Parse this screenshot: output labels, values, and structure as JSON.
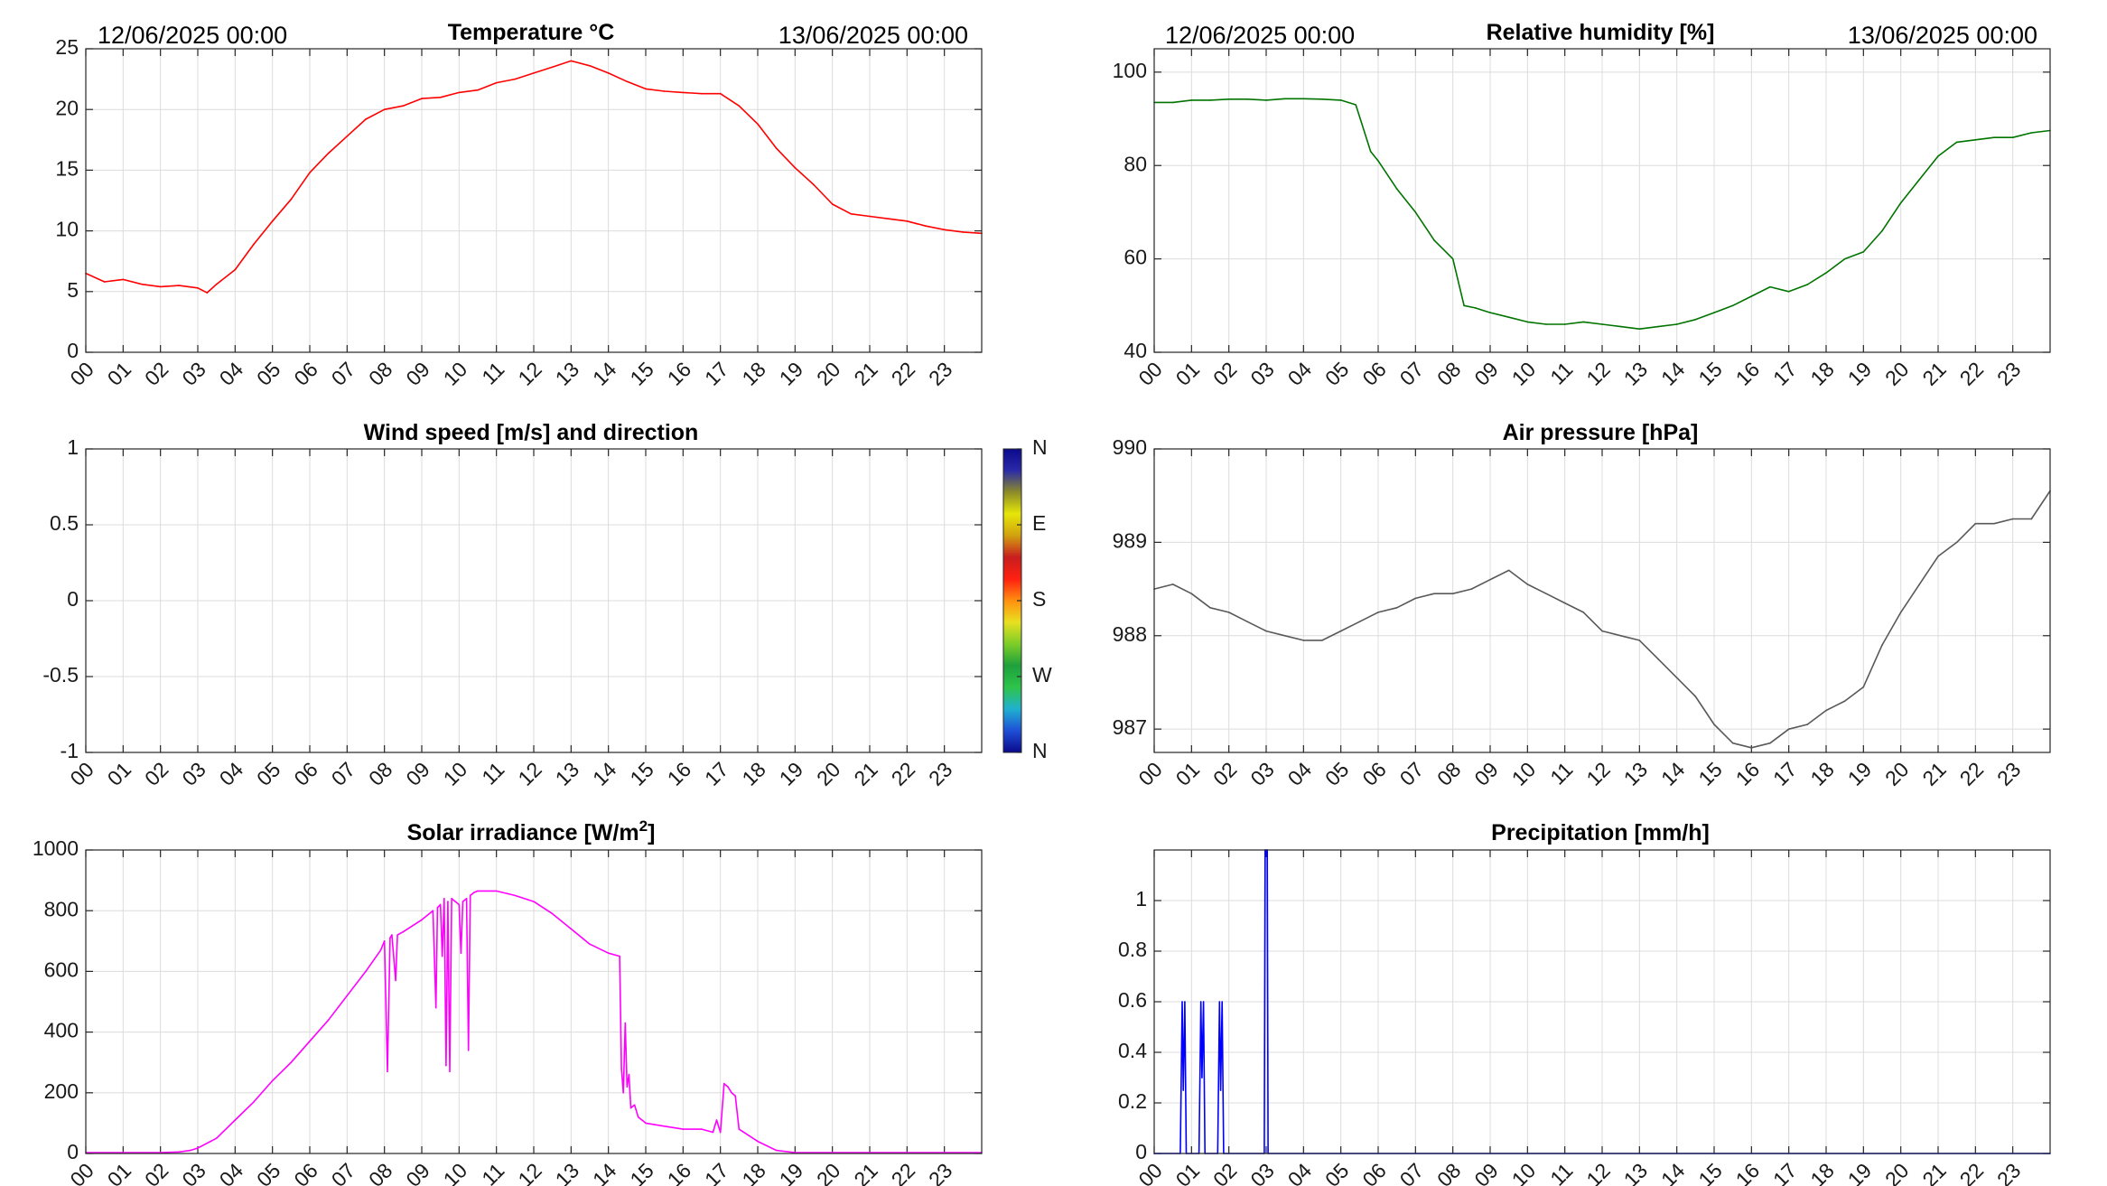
{
  "chart_data": [
    {
      "id": "temp",
      "type": "line",
      "title": "Temperature °C",
      "date_start": "12/06/2025 00:00",
      "date_end": "13/06/2025 00:00",
      "x_tick_labels": [
        "00",
        "01",
        "02",
        "03",
        "04",
        "05",
        "06",
        "07",
        "08",
        "09",
        "10",
        "11",
        "12",
        "13",
        "14",
        "15",
        "16",
        "17",
        "18",
        "19",
        "20",
        "21",
        "22",
        "23"
      ],
      "xlim": [
        0,
        24
      ],
      "ylim": [
        0,
        25
      ],
      "yticks": [
        0,
        5,
        10,
        15,
        20,
        25
      ],
      "ytick_labels": [
        "0",
        "5",
        "10",
        "15",
        "20",
        "25"
      ],
      "grid": true,
      "color": "#ff0000",
      "x": [
        0,
        0.5,
        1,
        1.5,
        2,
        2.5,
        3,
        3.25,
        3.5,
        4,
        4.5,
        5,
        5.5,
        6,
        6.5,
        7,
        7.5,
        8,
        8.5,
        9,
        9.5,
        10,
        10.5,
        11,
        11.5,
        12,
        12.5,
        13,
        13.5,
        14,
        14.5,
        15,
        15.5,
        16,
        16.5,
        17,
        17.5,
        18,
        18.5,
        19,
        19.5,
        20,
        20.5,
        21,
        21.5,
        22,
        22.5,
        23,
        23.5,
        24
      ],
      "y": [
        6.5,
        5.8,
        6.0,
        5.6,
        5.4,
        5.5,
        5.3,
        4.9,
        5.6,
        6.8,
        8.9,
        10.8,
        12.6,
        14.8,
        16.4,
        17.8,
        19.2,
        20.0,
        20.3,
        20.9,
        21.0,
        21.4,
        21.6,
        22.2,
        22.5,
        23.0,
        23.5,
        24.0,
        23.6,
        23.0,
        22.3,
        21.7,
        21.5,
        21.4,
        21.3,
        21.3,
        20.3,
        18.8,
        16.8,
        15.2,
        13.8,
        12.2,
        11.4,
        11.2,
        11.0,
        10.8,
        10.4,
        10.1,
        9.9,
        9.8
      ]
    },
    {
      "id": "rh",
      "type": "line",
      "title": "Relative humidity [%]",
      "date_start": "12/06/2025 00:00",
      "date_end": "13/06/2025 00:00",
      "x_tick_labels": [
        "00",
        "01",
        "02",
        "03",
        "04",
        "05",
        "06",
        "07",
        "08",
        "09",
        "10",
        "11",
        "12",
        "13",
        "14",
        "15",
        "16",
        "17",
        "18",
        "19",
        "20",
        "21",
        "22",
        "23"
      ],
      "xlim": [
        0,
        24
      ],
      "ylim": [
        40,
        105
      ],
      "yticks": [
        40,
        60,
        80,
        100
      ],
      "ytick_labels": [
        "40",
        "60",
        "80",
        "100"
      ],
      "grid": true,
      "color": "#007400",
      "x": [
        0,
        0.5,
        1,
        1.5,
        2,
        2.5,
        3,
        3.5,
        4,
        4.5,
        5,
        5.4,
        5.8,
        6,
        6.5,
        7,
        7.5,
        8,
        8.3,
        8.6,
        9,
        9.5,
        10,
        10.5,
        11,
        11.5,
        12,
        12.5,
        13,
        13.5,
        14,
        14.5,
        15,
        15.5,
        16,
        16.5,
        17,
        17.5,
        18,
        18.5,
        19,
        19.5,
        20,
        20.5,
        21,
        21.5,
        22,
        22.5,
        23,
        23.5,
        24
      ],
      "y": [
        93.5,
        93.5,
        94.0,
        94.0,
        94.2,
        94.2,
        94.0,
        94.3,
        94.3,
        94.2,
        94.0,
        93.0,
        83.0,
        81.0,
        75.0,
        70.0,
        64.0,
        60.0,
        50.0,
        49.5,
        48.5,
        47.5,
        46.5,
        46.0,
        46.0,
        46.5,
        46.0,
        45.5,
        45.0,
        45.5,
        46.0,
        47.0,
        48.5,
        50.0,
        52.0,
        54.0,
        53.0,
        54.5,
        57.0,
        60.0,
        61.5,
        66.0,
        72.0,
        77.0,
        82.0,
        85.0,
        85.5,
        86.0,
        86.0,
        87.0,
        87.5
      ]
    },
    {
      "id": "wind",
      "type": "scatter",
      "title": "Wind speed [m/s] and direction",
      "x_tick_labels": [
        "00",
        "01",
        "02",
        "03",
        "04",
        "05",
        "06",
        "07",
        "08",
        "09",
        "10",
        "11",
        "12",
        "13",
        "14",
        "15",
        "16",
        "17",
        "18",
        "19",
        "20",
        "21",
        "22",
        "23"
      ],
      "xlim": [
        0,
        24
      ],
      "ylim": [
        -1,
        1
      ],
      "yticks": [
        -1,
        -0.5,
        0,
        0.5,
        1
      ],
      "ytick_labels": [
        "-1",
        "-0.5",
        "0",
        "0.5",
        "1"
      ],
      "grid": true,
      "x": [],
      "y": [],
      "colorbar_labels": [
        "N",
        "W",
        "S",
        "E",
        "N"
      ],
      "colorbar_colors": [
        "#0a0a8c",
        "#1e4fd6",
        "#20b0d0",
        "#2ec44a",
        "#1ea03c",
        "#7ccd28",
        "#e8e020",
        "#ff9010",
        "#ff2010",
        "#c81e1e",
        "#d0a010",
        "#e6e60a",
        "#8c8c28",
        "#2a2aa8",
        "#0a0a8c"
      ]
    },
    {
      "id": "pressure",
      "type": "line",
      "title": "Air pressure [hPa]",
      "x_tick_labels": [
        "00",
        "01",
        "02",
        "03",
        "04",
        "05",
        "06",
        "07",
        "08",
        "09",
        "10",
        "11",
        "12",
        "13",
        "14",
        "15",
        "16",
        "17",
        "18",
        "19",
        "20",
        "21",
        "22",
        "23"
      ],
      "xlim": [
        0,
        24
      ],
      "ylim": [
        986.75,
        990
      ],
      "yticks": [
        987,
        988,
        989,
        990
      ],
      "ytick_labels": [
        "987",
        "988",
        "989",
        "990"
      ],
      "grid": true,
      "color": "#595959",
      "x": [
        0,
        0.5,
        1,
        1.5,
        2,
        2.5,
        3,
        3.5,
        4,
        4.5,
        5,
        5.5,
        6,
        6.5,
        7,
        7.5,
        8,
        8.5,
        9,
        9.5,
        10,
        10.5,
        11,
        11.5,
        12,
        12.5,
        13,
        13.5,
        14,
        14.5,
        15,
        15.5,
        16,
        16.5,
        17,
        17.5,
        18,
        18.5,
        19,
        19.5,
        20,
        20.5,
        21,
        21.5,
        22,
        22.5,
        23,
        23.5,
        24
      ],
      "y": [
        988.5,
        988.55,
        988.45,
        988.3,
        988.25,
        988.15,
        988.05,
        988.0,
        987.95,
        987.95,
        988.05,
        988.15,
        988.25,
        988.3,
        988.4,
        988.45,
        988.45,
        988.5,
        988.6,
        988.7,
        988.55,
        988.45,
        988.35,
        988.25,
        988.05,
        988.0,
        987.95,
        987.75,
        987.55,
        987.35,
        987.05,
        986.85,
        986.8,
        986.85,
        987.0,
        987.05,
        987.2,
        987.3,
        987.45,
        987.9,
        988.25,
        988.55,
        988.85,
        989.0,
        989.2,
        989.2,
        989.25,
        989.25,
        989.55
      ]
    },
    {
      "id": "solar",
      "type": "line",
      "title": "Solar irradiance [W/m",
      "title_sup": "2",
      "title_end": "]",
      "x_tick_labels": [
        "00",
        "01",
        "02",
        "03",
        "04",
        "05",
        "06",
        "07",
        "08",
        "09",
        "10",
        "11",
        "12",
        "13",
        "14",
        "15",
        "16",
        "17",
        "18",
        "19",
        "20",
        "21",
        "22",
        "23"
      ],
      "xlim": [
        0,
        24
      ],
      "ylim": [
        0,
        1000
      ],
      "yticks": [
        0,
        200,
        400,
        600,
        800,
        1000
      ],
      "ytick_labels": [
        "0",
        "200",
        "400",
        "600",
        "800",
        "1000"
      ],
      "grid": true,
      "color": "#ff00ff",
      "x": [
        0,
        1,
        2,
        2.5,
        2.8,
        3,
        3.5,
        4,
        4.5,
        5,
        5.5,
        6,
        6.5,
        7,
        7.5,
        7.9,
        8.0,
        8.08,
        8.15,
        8.2,
        8.3,
        8.35,
        8.42,
        8.5,
        9,
        9.3,
        9.38,
        9.42,
        9.5,
        9.55,
        9.6,
        9.65,
        9.7,
        9.75,
        9.8,
        9.9,
        10,
        10.05,
        10.1,
        10.2,
        10.25,
        10.3,
        10.35,
        10.4,
        10.5,
        11,
        11.5,
        12,
        12.5,
        13,
        13.5,
        14,
        14.3,
        14.35,
        14.4,
        14.45,
        14.5,
        14.55,
        14.6,
        14.7,
        14.8,
        14.9,
        15,
        15.5,
        16,
        16.5,
        16.8,
        16.9,
        17.0,
        17.1,
        17.2,
        17.3,
        17.4,
        17.5,
        18,
        18.5,
        19,
        19.5,
        20,
        21,
        22,
        23,
        24
      ],
      "y": [
        3,
        3,
        3,
        5,
        10,
        18,
        50,
        110,
        170,
        240,
        300,
        370,
        440,
        520,
        600,
        670,
        700,
        270,
        710,
        720,
        570,
        720,
        725,
        730,
        770,
        800,
        480,
        810,
        820,
        650,
        840,
        290,
        830,
        270,
        840,
        830,
        820,
        660,
        830,
        840,
        340,
        850,
        855,
        860,
        865,
        865,
        850,
        830,
        790,
        740,
        690,
        660,
        650,
        280,
        200,
        430,
        220,
        260,
        150,
        160,
        120,
        110,
        100,
        90,
        80,
        80,
        70,
        110,
        70,
        230,
        220,
        200,
        190,
        80,
        40,
        10,
        3,
        3,
        3,
        3,
        3,
        3,
        3
      ]
    },
    {
      "id": "precip",
      "type": "line",
      "title": "Precipitation [mm/h]",
      "x_tick_labels": [
        "00",
        "01",
        "02",
        "03",
        "04",
        "05",
        "06",
        "07",
        "08",
        "09",
        "10",
        "11",
        "12",
        "13",
        "14",
        "15",
        "16",
        "17",
        "18",
        "19",
        "20",
        "21",
        "22",
        "23"
      ],
      "xlim": [
        0,
        24
      ],
      "ylim": [
        0,
        1.2
      ],
      "yticks": [
        0,
        0.2,
        0.4,
        0.6,
        0.8,
        1
      ],
      "ytick_labels": [
        "0",
        "0.2",
        "0.4",
        "0.6",
        "0.8",
        "1"
      ],
      "grid": true,
      "color": "#0000ff",
      "x": [
        0,
        0.7,
        0.75,
        0.78,
        0.82,
        0.86,
        1.2,
        1.25,
        1.28,
        1.32,
        1.36,
        1.7,
        1.75,
        1.78,
        1.82,
        1.86,
        2.95,
        2.97,
        3.03,
        3.05,
        24
      ],
      "y": [
        0,
        0,
        0.6,
        0.25,
        0.6,
        0,
        0,
        0.6,
        0.3,
        0.6,
        0,
        0,
        0.6,
        0.25,
        0.6,
        0,
        0,
        1.2,
        1.2,
        0,
        0
      ]
    }
  ]
}
